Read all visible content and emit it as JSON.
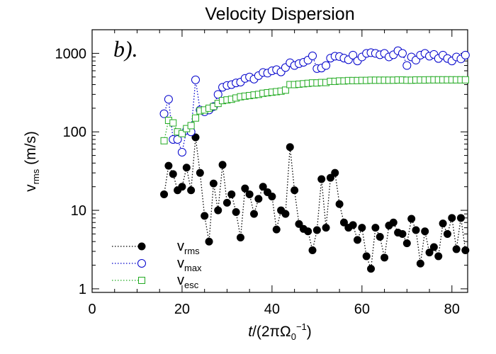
{
  "chart_data": {
    "type": "line",
    "title": "Velocity Dispersion",
    "annotation": "b).",
    "xlabel": [
      "t",
      "/(2πΩ",
      "0",
      "−1",
      ")"
    ],
    "ylabel": [
      "v",
      "rms",
      " (m/s)"
    ],
    "xlim": [
      0,
      83.5
    ],
    "ylim": [
      0.9,
      2000
    ],
    "yscale": "log",
    "xticks": [
      0,
      20,
      40,
      60,
      80
    ],
    "yticks": [
      1,
      10,
      100,
      1000
    ],
    "legend": "lower left",
    "x": [
      16,
      17,
      18,
      19,
      20,
      21,
      22,
      23,
      24,
      25,
      26,
      27,
      28,
      29,
      30,
      31,
      32,
      33,
      34,
      35,
      36,
      37,
      38,
      39,
      40,
      41,
      42,
      43,
      44,
      45,
      46,
      47,
      48,
      49,
      50,
      51,
      52,
      53,
      54,
      55,
      56,
      57,
      58,
      59,
      60,
      61,
      62,
      63,
      64,
      65,
      66,
      67,
      68,
      69,
      70,
      71,
      72,
      73,
      74,
      75,
      76,
      77,
      78,
      79,
      80,
      81,
      82,
      83
    ],
    "series": [
      {
        "name": "vrms",
        "color": "#000000",
        "marker": "filled-circle",
        "values": [
          16,
          37,
          29,
          18,
          20,
          35,
          18,
          85,
          30,
          8.5,
          4,
          22,
          10,
          38,
          12.5,
          16,
          9.5,
          4.5,
          19,
          16,
          9,
          14,
          20,
          17,
          15,
          5.7,
          10,
          9,
          64,
          18,
          6.7,
          5.8,
          5.4,
          3.1,
          5.6,
          25,
          6,
          26,
          30,
          12,
          7,
          6,
          6.5,
          4.2,
          6,
          2.6,
          1.8,
          6,
          4.6,
          2.5,
          6.4,
          7,
          5.2,
          5,
          3.8,
          7.8,
          5.6,
          2.1,
          5.4,
          2.9,
          3.4,
          2.6,
          6.8,
          5,
          8,
          3.2,
          8,
          3.1
        ]
      },
      {
        "name": "vmax",
        "color": "#0000cc",
        "marker": "open-circle",
        "values": [
          170,
          260,
          80,
          80,
          55,
          105,
          100,
          460,
          190,
          180,
          190,
          210,
          300,
          370,
          390,
          400,
          420,
          430,
          480,
          500,
          470,
          520,
          570,
          560,
          600,
          620,
          580,
          660,
          760,
          700,
          740,
          770,
          820,
          930,
          640,
          650,
          700,
          870,
          920,
          910,
          870,
          830,
          950,
          800,
          900,
          1000,
          1020,
          1000,
          960,
          1000,
          900,
          960,
          1080,
          1000,
          700,
          900,
          820,
          950,
          1000,
          920,
          970,
          860,
          950,
          860,
          800,
          900,
          850,
          950
        ]
      },
      {
        "name": "vesc",
        "color": "#22aa22",
        "marker": "open-square",
        "values": [
          77,
          140,
          130,
          100,
          95,
          110,
          120,
          150,
          185,
          190,
          200,
          210,
          230,
          250,
          255,
          260,
          270,
          280,
          285,
          290,
          295,
          300,
          310,
          315,
          320,
          325,
          330,
          340,
          400,
          400,
          405,
          410,
          415,
          420,
          420,
          425,
          425,
          440,
          440,
          445,
          445,
          450,
          450,
          450,
          452,
          452,
          455,
          455,
          455,
          455,
          455,
          455,
          458,
          458,
          455,
          455,
          458,
          458,
          458,
          460,
          460,
          460,
          460,
          460,
          460,
          460,
          460,
          460
        ]
      }
    ]
  }
}
